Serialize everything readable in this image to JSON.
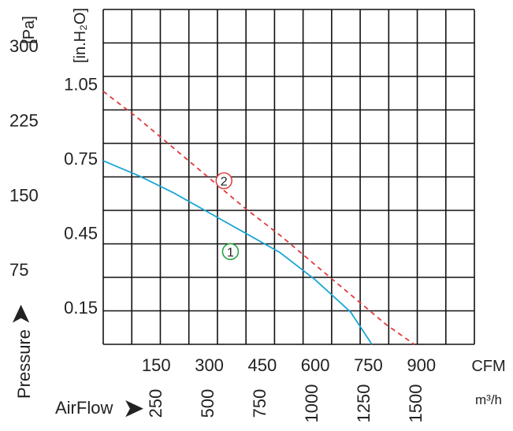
{
  "chart_data": {
    "type": "line",
    "x_unit_cfm": "CFM",
    "x_unit_m3h": "m³/h",
    "x_label": "AirFlow",
    "y_label": "Pressure",
    "y_unit_pa": "[Pa]",
    "y_unit_inh2o": "[in.H₂O]",
    "xlim_cfm": [
      0,
      1050
    ],
    "ylim_inh2o": [
      0,
      1.35
    ],
    "grid": true,
    "x_ticks_cfm": [
      "150",
      "300",
      "450",
      "600",
      "750",
      "900"
    ],
    "x_ticks_m3h": [
      "250",
      "500",
      "750",
      "1000",
      "1250",
      "1500"
    ],
    "y_ticks_inh2o": [
      "0.15",
      "0.45",
      "0.75",
      "1.05"
    ],
    "y_ticks_pa": [
      "75",
      "150",
      "225",
      "300"
    ],
    "series": [
      {
        "name": "1",
        "color": "#1aa6d6",
        "style": "solid",
        "marker_color": "#1e9e3e",
        "x": [
          0,
          100,
          200,
          300,
          400,
          500,
          600,
          700,
          760
        ],
        "y": [
          0.74,
          0.68,
          0.61,
          0.53,
          0.45,
          0.37,
          0.26,
          0.13,
          0.0
        ]
      },
      {
        "name": "2",
        "color": "#e03a3a",
        "style": "dashed",
        "marker_color": "#e03a3a",
        "x": [
          0,
          100,
          200,
          300,
          400,
          500,
          600,
          700,
          800,
          880
        ],
        "y": [
          1.02,
          0.91,
          0.79,
          0.67,
          0.55,
          0.44,
          0.32,
          0.2,
          0.08,
          0.0
        ]
      }
    ]
  }
}
